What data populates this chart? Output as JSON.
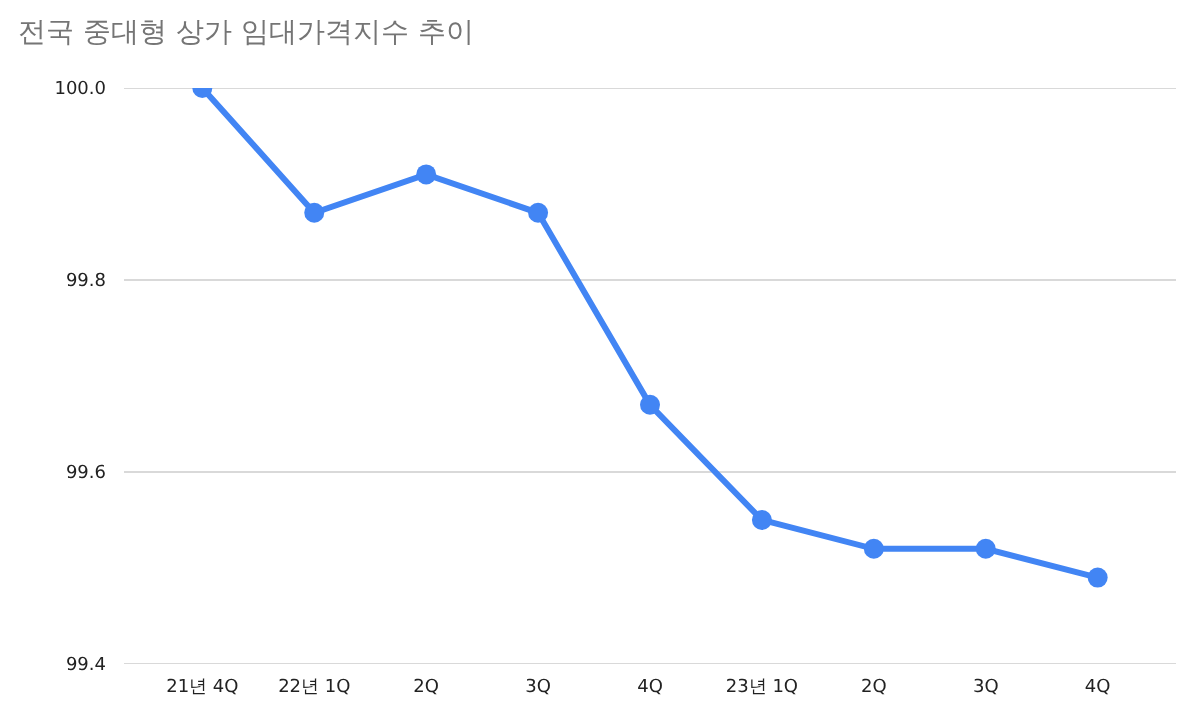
{
  "chart_data": {
    "type": "line",
    "title": "전국 중대형 상가 임대가격지수 추이",
    "categories": [
      "21년 4Q",
      "22년 1Q",
      "2Q",
      "3Q",
      "4Q",
      "23년 1Q",
      "2Q",
      "3Q",
      "4Q"
    ],
    "series": [
      {
        "color": "#4285f4",
        "values": [
          100.0,
          99.87,
          99.91,
          99.87,
          99.67,
          99.55,
          99.52,
          99.52,
          99.49
        ]
      }
    ],
    "ylim": [
      99.4,
      100.0
    ],
    "yticks": [
      {
        "value": 99.4,
        "label": "99.4"
      },
      {
        "value": 99.6,
        "label": "99.6"
      },
      {
        "value": 99.8,
        "label": "99.8"
      },
      {
        "value": 100.0,
        "label": "100.0"
      }
    ],
    "grid": "y",
    "marker": "circle",
    "line_style": "solid"
  }
}
